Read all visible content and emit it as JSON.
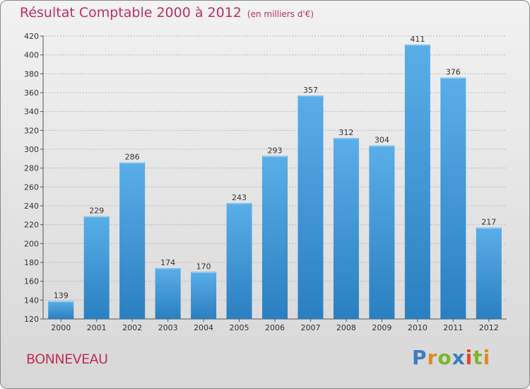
{
  "header": {
    "title": "Résultat Comptable 2000 à 2012",
    "subtitle": "(en milliers d'€)"
  },
  "footer": {
    "commune": "BONNEVEAU",
    "logo_text": "Proxiti"
  },
  "colors": {
    "title": "#c0305a",
    "bar_top": "#5aaee8",
    "bar_bottom": "#2a7fc0",
    "grid": "#bbbbbb",
    "logo_letters": [
      "#3a7cc6",
      "#e58a1f",
      "#7fb52e",
      "#3a7cc6",
      "#e5442d",
      "#7fb52e",
      "#e58a1f"
    ]
  },
  "chart_data": {
    "type": "bar",
    "categories": [
      "2000",
      "2001",
      "2002",
      "2003",
      "2004",
      "2005",
      "2006",
      "2007",
      "2008",
      "2009",
      "2010",
      "2011",
      "2012"
    ],
    "values": [
      139,
      229,
      286,
      174,
      170,
      243,
      293,
      357,
      312,
      304,
      411,
      376,
      217
    ],
    "ylim": [
      120,
      420
    ],
    "yticks": [
      120,
      140,
      160,
      180,
      200,
      220,
      240,
      260,
      280,
      300,
      320,
      340,
      360,
      380,
      400,
      420
    ],
    "grid": true
  }
}
